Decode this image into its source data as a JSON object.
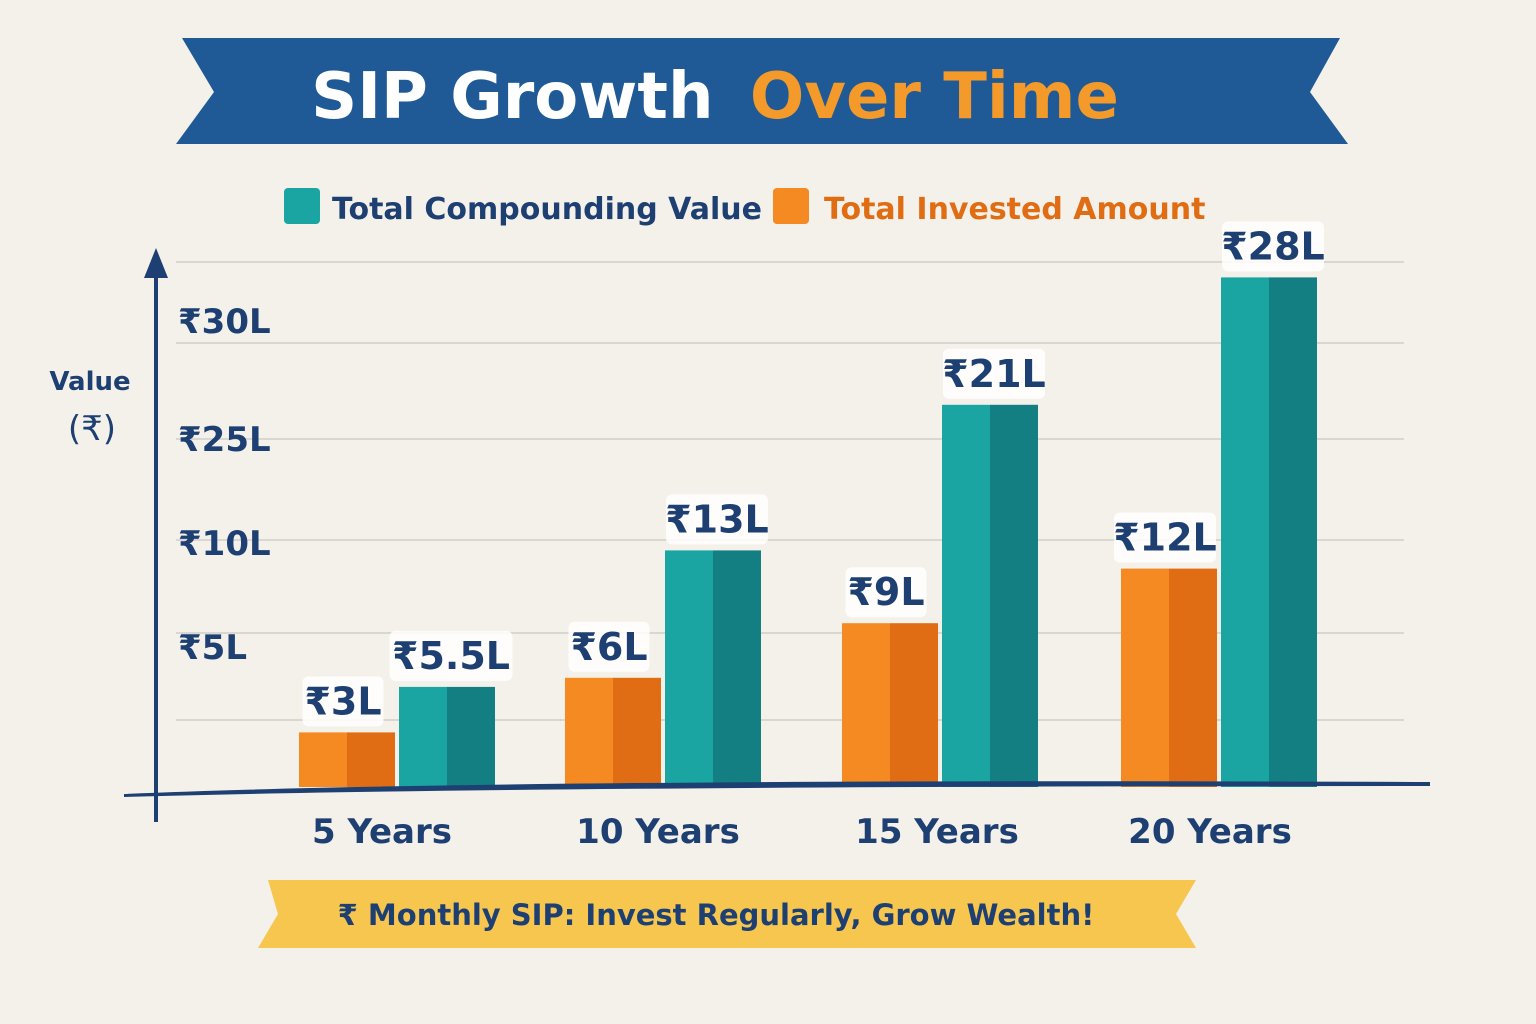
{
  "title": {
    "part1": "SIP Growth",
    "part2": "Over Time"
  },
  "footer": {
    "text": "₹ Monthly SIP: Invest Regularly, Grow Wealth!"
  },
  "colors": {
    "banner": "#1f5a96",
    "title_white": "#ffffff",
    "title_orange": "#f39a2a",
    "compounding": "#1aa5a3",
    "compounding_dark": "#137f82",
    "invested": "#f58a22",
    "invested_dark": "#e06d13",
    "axis": "#1d3f72",
    "footer_ribbon": "#f6c64f",
    "grid": "#d9d7d2"
  },
  "chart_data": {
    "type": "bar",
    "title": "SIP Growth Over Time",
    "ylabel": "Value",
    "ylabel_unit": "(₹)",
    "xlabel": "",
    "categories": [
      "5 Years",
      "10 Years",
      "15 Years",
      "20 Years"
    ],
    "yticks": [
      "₹30L",
      "₹25L",
      "₹10L",
      "₹5L"
    ],
    "grid": true,
    "legend_position": "top-center",
    "series": [
      {
        "name": "Total Invested Amount",
        "values": [
          3,
          6,
          9,
          12
        ],
        "labels": [
          "₹3L",
          "₹6L",
          "₹9L",
          "₹12L"
        ]
      },
      {
        "name": "Total Compounding Value",
        "values": [
          5.5,
          13,
          21,
          28
        ],
        "labels": [
          "₹5.5L",
          "₹13L",
          "₹21L",
          "₹28L"
        ]
      }
    ],
    "legend_order": [
      "Total Compounding Value",
      "Total Invested Amount"
    ]
  }
}
